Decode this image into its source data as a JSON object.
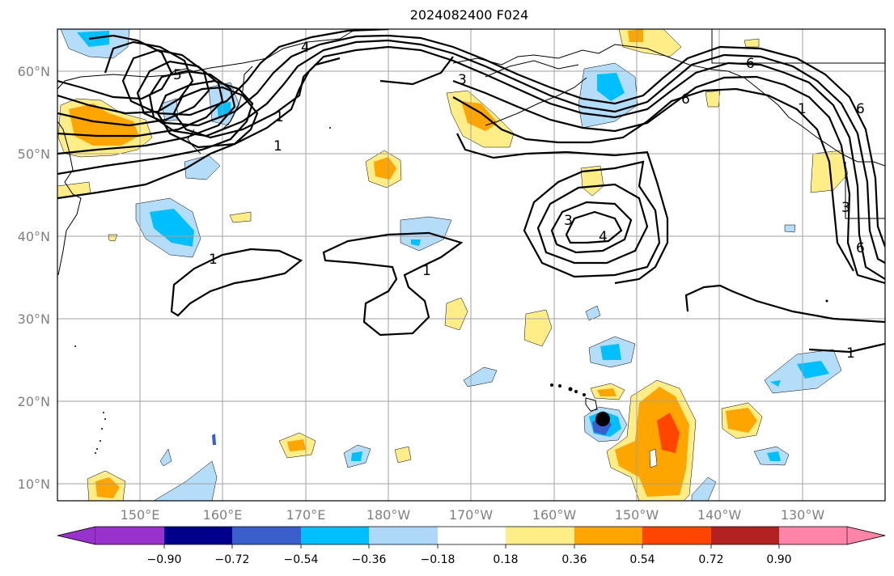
{
  "title": "2024082400 F024",
  "map": {
    "lat_labels": [
      "60°N",
      "50°N",
      "40°N",
      "30°N",
      "20°N",
      "10°N"
    ],
    "lon_labels": [
      "150°E",
      "160°E",
      "170°E",
      "180°W",
      "170°W",
      "160°W",
      "150°W",
      "140°W",
      "130°W"
    ],
    "lon_range": [
      140,
      240
    ],
    "lat_range": [
      8,
      65
    ],
    "contour_labels": [
      "4",
      "5",
      "1",
      "1",
      "1",
      "1",
      "1",
      "3",
      "4",
      "6",
      "6",
      "6",
      "1",
      "6",
      "3",
      "3"
    ],
    "marker": "black-dot"
  },
  "colorbar": {
    "ticks": [
      "−0.90",
      "−0.72",
      "−0.54",
      "−0.36",
      "−0.18",
      "0.18",
      "0.36",
      "0.54",
      "0.72",
      "0.90"
    ],
    "colors": [
      "#9932cc",
      "#00008b",
      "#3a5fcd",
      "#00bfff",
      "#add8f7",
      "#ffffff",
      "#ffee88",
      "#ffa500",
      "#ff4500",
      "#b22222",
      "#ff85a8"
    ]
  },
  "colors": {
    "light_blue": "#b3ddf8",
    "blue": "#00bfff",
    "mid_blue": "#3a5fcd",
    "light_yellow": "#ffee88",
    "orange": "#ffa500",
    "red_orange": "#ff4500"
  }
}
